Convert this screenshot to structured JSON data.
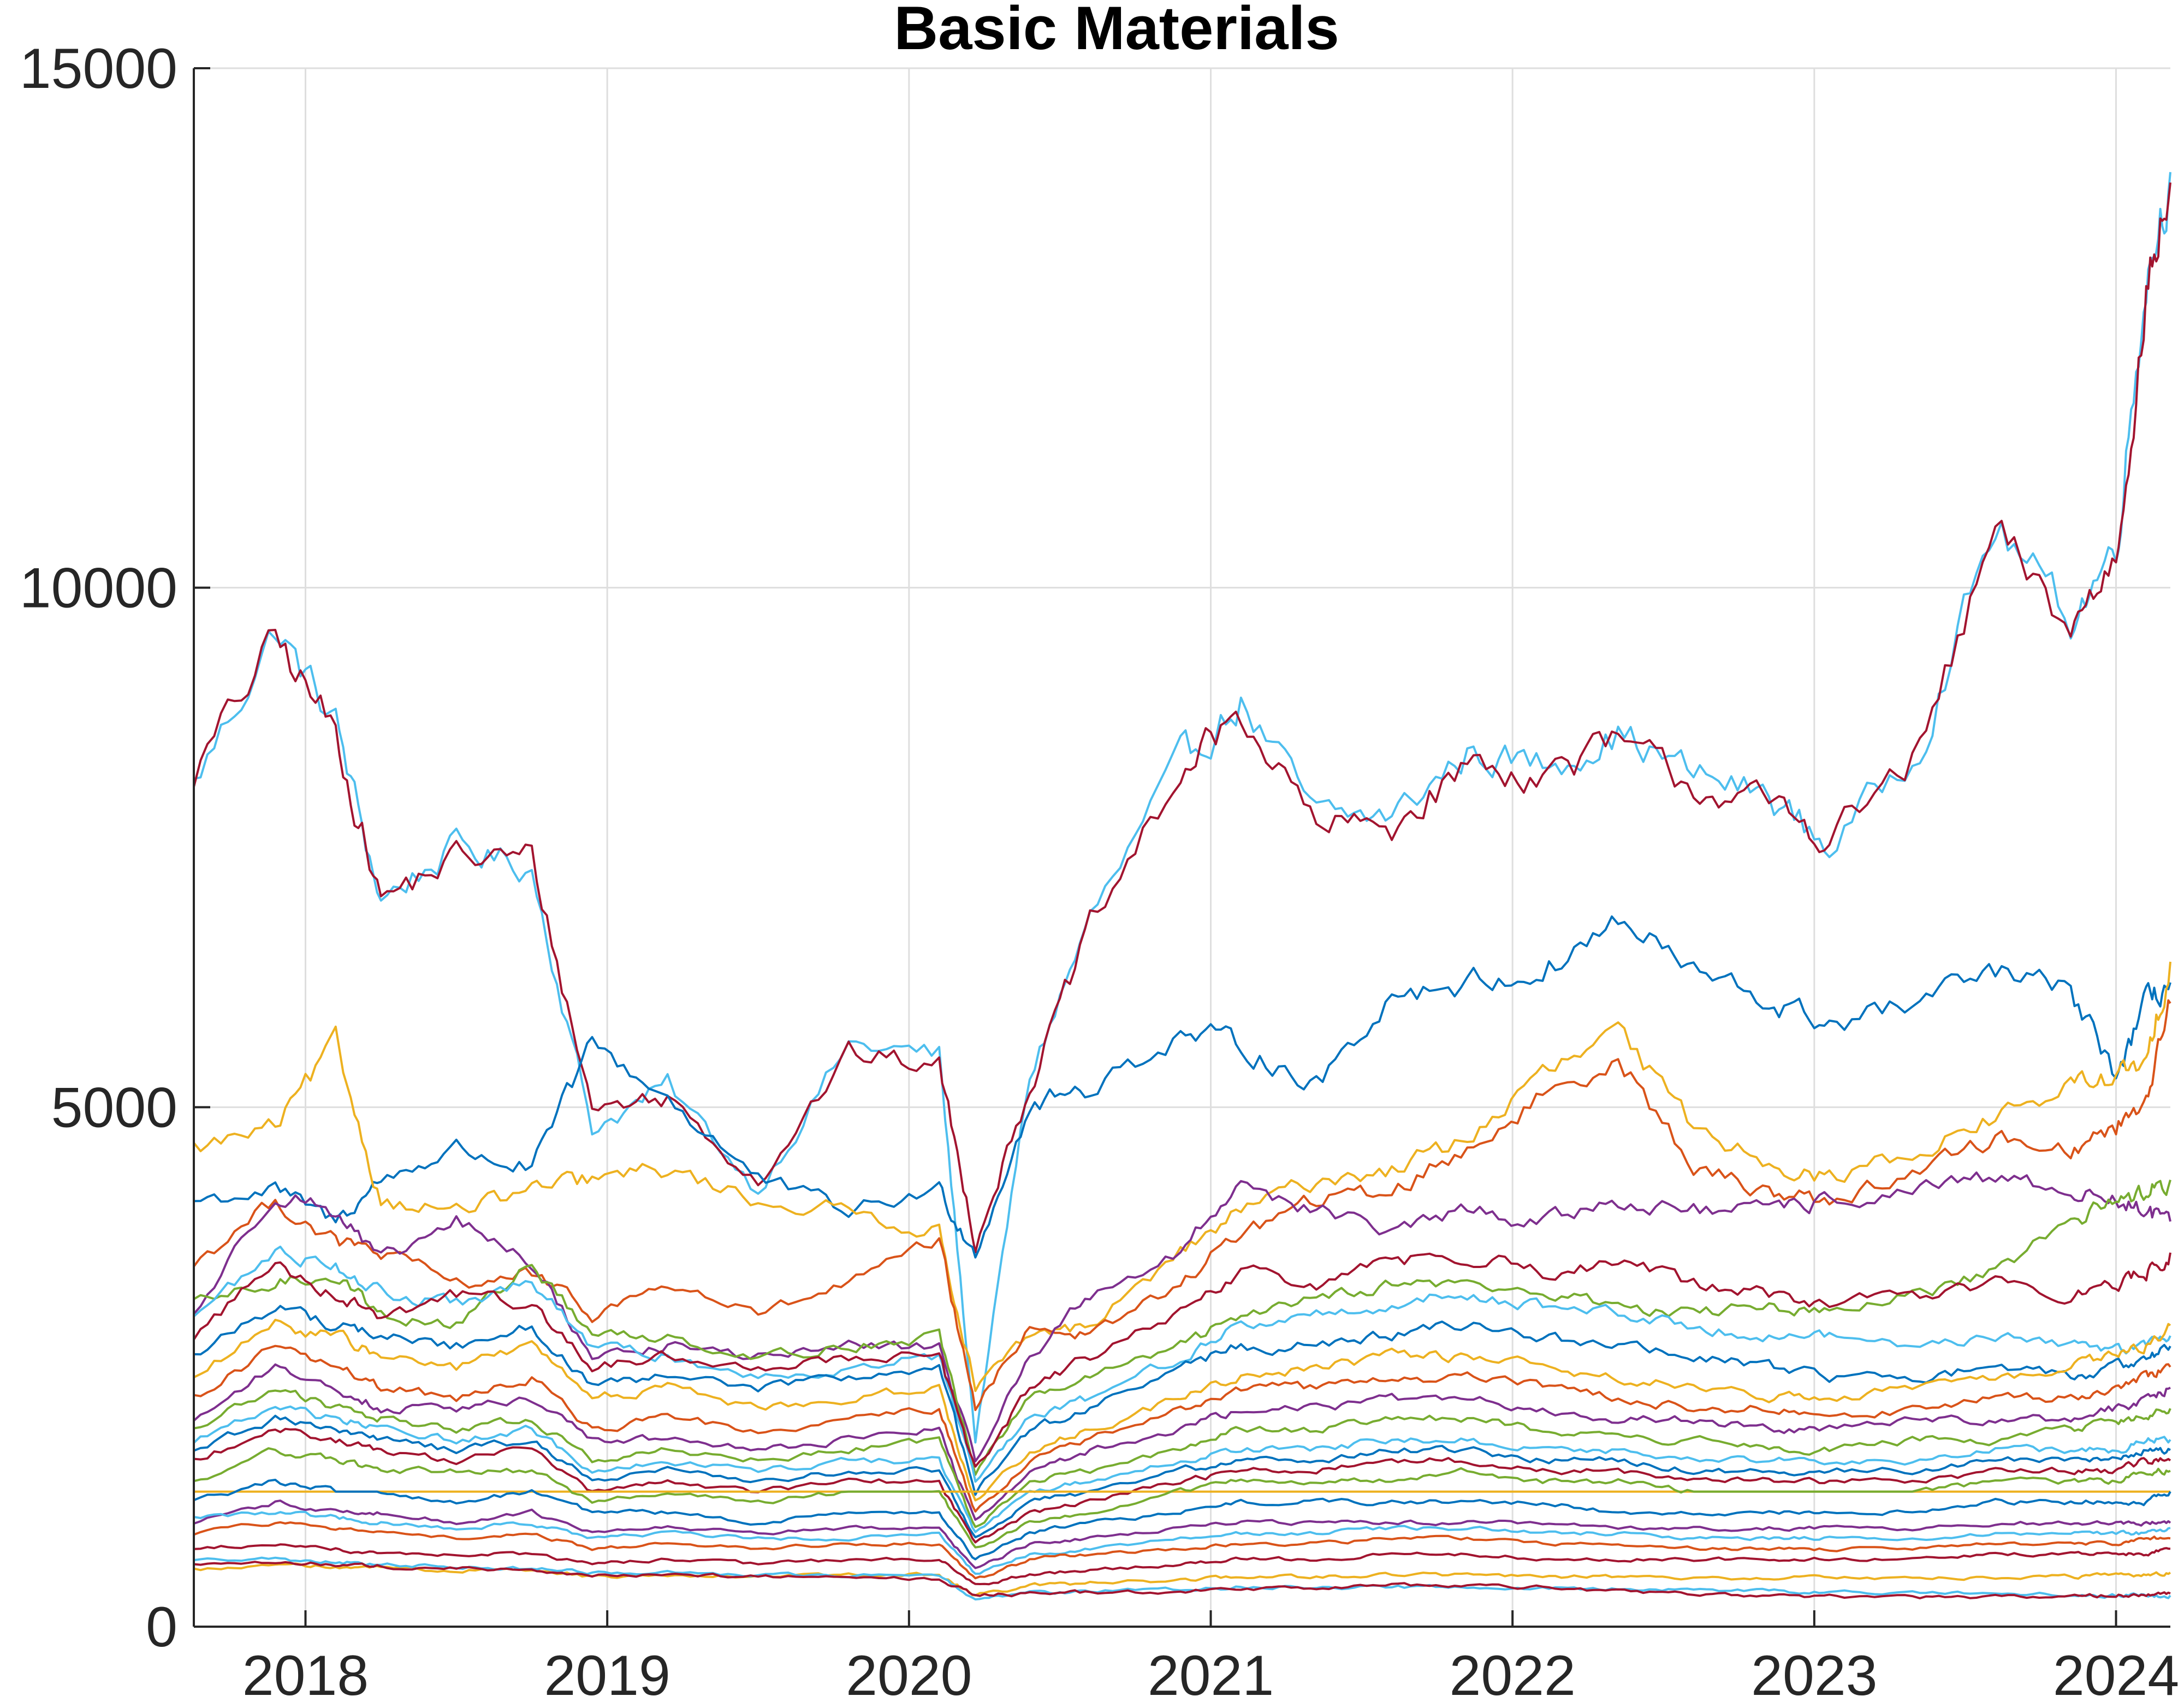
{
  "chart_data": {
    "type": "line",
    "title": "Basic Materials",
    "xlabel": "",
    "ylabel": "",
    "xlim": [
      2017.63,
      2024.18
    ],
    "ylim": [
      0,
      15000
    ],
    "x_ticks": [
      "2018",
      "2019",
      "2020",
      "2021",
      "2022",
      "2023",
      "2024"
    ],
    "y_ticks": [
      "0",
      "5000",
      "10000",
      "15000"
    ],
    "grid": true,
    "legend": "none",
    "colors": [
      "#4dbeee",
      "#7e2f8e",
      "#0072bd",
      "#d95319",
      "#edb120",
      "#77ac30",
      "#a2142f"
    ],
    "series_note_x": [
      2017.63,
      2017.9,
      2018.1,
      2018.25,
      2018.5,
      2018.75,
      2018.95,
      2019.2,
      2019.5,
      2019.8,
      2020.1,
      2020.22,
      2020.4,
      2020.6,
      2020.9,
      2021.1,
      2021.35,
      2021.6,
      2021.85,
      2022.1,
      2022.35,
      2022.6,
      2022.85,
      2023.05,
      2023.35,
      2023.6,
      2023.85,
      2024.0,
      2024.1,
      2024.18
    ],
    "series": [
      {
        "color": "#4dbeee",
        "values": [
          8100,
          9600,
          8700,
          7000,
          7500,
          7300,
          4800,
          5200,
          4200,
          5600,
          5500,
          1800,
          5300,
          6800,
          8300,
          8900,
          7800,
          7800,
          8400,
          8300,
          8600,
          8200,
          8000,
          7500,
          8500,
          10600,
          9700,
          10400,
          13000,
          14000
        ]
      },
      {
        "color": "#a2142f",
        "values": [
          8200,
          9500,
          8600,
          7000,
          7400,
          7400,
          5000,
          5100,
          4300,
          5500,
          5400,
          3700,
          5200,
          6700,
          8200,
          8800,
          7700,
          7700,
          8300,
          8200,
          8500,
          8100,
          7900,
          7600,
          8400,
          10500,
          9600,
          10300,
          12800,
          13900
        ]
      },
      {
        "color": "#0072bd",
        "values": [
          4100,
          4200,
          3900,
          4300,
          4600,
          4400,
          5600,
          5100,
          4300,
          4000,
          4200,
          3600,
          5000,
          5200,
          5700,
          5600,
          5200,
          6100,
          6200,
          6300,
          6800,
          6300,
          6000,
          5800,
          6000,
          6300,
          6100,
          5300,
          6000,
          6200
        ]
      },
      {
        "color": "#edb120",
        "values": [
          4600,
          4800,
          5600,
          4100,
          4000,
          4200,
          4300,
          4400,
          4100,
          4000,
          3800,
          2300,
          2800,
          2900,
          3600,
          4000,
          4300,
          4400,
          4700,
          5300,
          5700,
          4800,
          4500,
          4300,
          4600,
          4900,
          5200,
          5300,
          5400,
          6400
        ]
      },
      {
        "color": "#d95319",
        "values": [
          3500,
          4100,
          3700,
          3600,
          3300,
          3400,
          3000,
          3300,
          3000,
          3300,
          3700,
          2100,
          2900,
          2800,
          3300,
          3800,
          4100,
          4200,
          4600,
          5100,
          5500,
          4400,
          4200,
          4100,
          4400,
          4700,
          4600,
          4800,
          5100,
          6000
        ]
      },
      {
        "color": "#7e2f8e",
        "values": [
          3000,
          4200,
          4000,
          3500,
          3900,
          3500,
          2600,
          2700,
          2600,
          2700,
          2700,
          1600,
          2600,
          3200,
          3600,
          4300,
          4000,
          3800,
          4000,
          3900,
          4100,
          4000,
          4000,
          4100,
          4200,
          4300,
          4200,
          4100,
          4000,
          3900
        ]
      },
      {
        "color": "#77ac30",
        "values": [
          3100,
          3300,
          3400,
          3000,
          2900,
          3500,
          2800,
          2800,
          2600,
          2700,
          2800,
          1500,
          2200,
          2400,
          2700,
          3000,
          3200,
          3300,
          3300,
          3200,
          3100,
          3000,
          3100,
          3000,
          3200,
          3400,
          3900,
          4100,
          4200,
          4300
        ]
      },
      {
        "color": "#4dbeee",
        "values": [
          3000,
          3600,
          3500,
          3200,
          3100,
          3300,
          2700,
          2600,
          2400,
          2500,
          2600,
          1400,
          2000,
          2200,
          2600,
          2900,
          3000,
          3100,
          3200,
          3100,
          3000,
          2900,
          2800,
          2800,
          2700,
          2800,
          2700,
          2700,
          2700,
          2800
        ]
      },
      {
        "color": "#0072bd",
        "values": [
          2600,
          3100,
          2900,
          2800,
          2700,
          2900,
          2300,
          2400,
          2300,
          2400,
          2500,
          1300,
          1900,
          2100,
          2500,
          2700,
          2700,
          2800,
          2900,
          2800,
          2700,
          2600,
          2500,
          2400,
          2400,
          2500,
          2400,
          2500,
          2600,
          2700
        ]
      },
      {
        "color": "#a2142f",
        "values": [
          2800,
          3500,
          3200,
          3000,
          3200,
          3100,
          2500,
          2600,
          2500,
          2600,
          2600,
          1500,
          2300,
          2600,
          3000,
          3400,
          3300,
          3500,
          3600,
          3400,
          3500,
          3300,
          3200,
          3100,
          3200,
          3300,
          3200,
          3300,
          3400,
          3600
        ]
      },
      {
        "color": "#edb120",
        "values": [
          2400,
          2900,
          2800,
          2600,
          2500,
          2700,
          2200,
          2300,
          2100,
          2200,
          2300,
          1200,
          1700,
          1900,
          2200,
          2400,
          2500,
          2600,
          2600,
          2500,
          2400,
          2300,
          2200,
          2200,
          2300,
          2400,
          2500,
          2600,
          2700,
          2900
        ]
      },
      {
        "color": "#d95319",
        "values": [
          2200,
          2700,
          2500,
          2300,
          2200,
          2400,
          1900,
          2000,
          1900,
          2000,
          2100,
          1100,
          1600,
          1800,
          2100,
          2300,
          2300,
          2400,
          2400,
          2300,
          2200,
          2100,
          2100,
          2000,
          2100,
          2200,
          2200,
          2300,
          2400,
          2500
        ]
      },
      {
        "color": "#7e2f8e",
        "values": [
          2000,
          2500,
          2300,
          2100,
          2100,
          2200,
          1800,
          1800,
          1700,
          1800,
          1900,
          1000,
          1500,
          1700,
          1900,
          2100,
          2100,
          2200,
          2200,
          2100,
          2000,
          2000,
          1900,
          1900,
          2000,
          2000,
          2000,
          2100,
          2200,
          2300
        ]
      },
      {
        "color": "#77ac30",
        "values": [
          1900,
          2300,
          2100,
          2000,
          1900,
          2000,
          1600,
          1700,
          1600,
          1700,
          1800,
          950,
          1400,
          1500,
          1700,
          1900,
          1900,
          2000,
          2000,
          1900,
          1800,
          1800,
          1700,
          1700,
          1800,
          1800,
          1900,
          2000,
          2000,
          2100
        ]
      },
      {
        "color": "#4dbeee",
        "values": [
          1800,
          2100,
          2000,
          1900,
          1800,
          1900,
          1500,
          1600,
          1500,
          1600,
          1600,
          900,
          1300,
          1400,
          1600,
          1700,
          1700,
          1800,
          1800,
          1700,
          1700,
          1600,
          1600,
          1600,
          1600,
          1700,
          1700,
          1700,
          1800,
          1800
        ]
      },
      {
        "color": "#0072bd",
        "values": [
          1700,
          2000,
          1900,
          1800,
          1700,
          1800,
          1400,
          1500,
          1400,
          1500,
          1500,
          850,
          1200,
          1300,
          1500,
          1600,
          1600,
          1700,
          1700,
          1600,
          1600,
          1500,
          1500,
          1500,
          1500,
          1600,
          1600,
          1600,
          1700,
          1700
        ]
      },
      {
        "color": "#a2142f",
        "values": [
          1600,
          1900,
          1800,
          1700,
          1600,
          1700,
          1300,
          1400,
          1300,
          1400,
          1400,
          800,
          1100,
          1200,
          1400,
          1500,
          1500,
          1600,
          1600,
          1500,
          1500,
          1400,
          1400,
          1400,
          1400,
          1500,
          1500,
          1500,
          1600,
          1600
        ]
      },
      {
        "color": "#edb120",
        "values": [
          1300,
          1300,
          1300,
          1300,
          1300,
          1300,
          1300,
          1300,
          1300,
          1300,
          1300,
          1300,
          1300,
          1300,
          1300,
          1300,
          1300,
          1300,
          1300,
          1300,
          1300,
          1300,
          1300,
          1300,
          1300,
          1300,
          1300,
          1300,
          1300,
          1300
        ]
      },
      {
        "color": "#77ac30",
        "values": [
          1400,
          1700,
          1600,
          1500,
          1500,
          1500,
          1200,
          1300,
          1200,
          1300,
          1300,
          750,
          1000,
          1100,
          1300,
          1400,
          1400,
          1400,
          1500,
          1400,
          1400,
          1300,
          1300,
          1300,
          1300,
          1400,
          1400,
          1400,
          1500,
          1500
        ]
      },
      {
        "color": "#0072bd",
        "values": [
          1200,
          1400,
          1300,
          1300,
          1200,
          1300,
          1100,
          1100,
          1000,
          1100,
          1100,
          650,
          900,
          1000,
          1100,
          1200,
          1200,
          1200,
          1200,
          1200,
          1100,
          1100,
          1100,
          1100,
          1100,
          1200,
          1200,
          1200,
          1200,
          1300
        ]
      },
      {
        "color": "#7e2f8e",
        "values": [
          1000,
          1200,
          1100,
          1100,
          1000,
          1100,
          900,
          950,
          900,
          950,
          950,
          550,
          800,
          850,
          950,
          1000,
          1000,
          1000,
          1000,
          1000,
          950,
          950,
          950,
          950,
          950,
          1000,
          1000,
          1000,
          1000,
          1000
        ]
      },
      {
        "color": "#4dbeee",
        "values": [
          1050,
          1100,
          1050,
          1000,
          950,
          1000,
          850,
          900,
          850,
          850,
          900,
          500,
          700,
          750,
          850,
          900,
          900,
          950,
          950,
          900,
          900,
          850,
          850,
          850,
          850,
          900,
          900,
          900,
          900,
          950
        ]
      },
      {
        "color": "#d95319",
        "values": [
          900,
          1000,
          950,
          900,
          850,
          900,
          750,
          800,
          750,
          800,
          800,
          450,
          650,
          700,
          750,
          800,
          800,
          850,
          850,
          800,
          800,
          750,
          750,
          750,
          750,
          800,
          800,
          800,
          850,
          850
        ]
      },
      {
        "color": "#a2142f",
        "values": [
          750,
          800,
          750,
          700,
          700,
          700,
          600,
          650,
          600,
          650,
          650,
          400,
          500,
          550,
          600,
          650,
          650,
          700,
          700,
          650,
          650,
          650,
          650,
          650,
          650,
          700,
          700,
          700,
          700,
          750
        ]
      },
      {
        "color": "#edb120",
        "values": [
          550,
          600,
          580,
          560,
          540,
          550,
          480,
          500,
          480,
          500,
          500,
          300,
          400,
          420,
          450,
          480,
          480,
          500,
          500,
          480,
          480,
          470,
          470,
          470,
          470,
          480,
          480,
          500,
          500,
          520
        ]
      },
      {
        "color": "#4dbeee",
        "values": [
          650,
          650,
          620,
          600,
          580,
          560,
          520,
          520,
          500,
          500,
          480,
          250,
          330,
          340,
          360,
          380,
          380,
          380,
          380,
          370,
          360,
          350,
          340,
          330,
          320,
          320,
          310,
          300,
          300,
          300
        ]
      },
      {
        "color": "#a2142f",
        "values": [
          600,
          620,
          600,
          580,
          560,
          540,
          500,
          500,
          480,
          480,
          460,
          300,
          320,
          330,
          340,
          350,
          380,
          400,
          400,
          380,
          340,
          320,
          300,
          290,
          280,
          290,
          300,
          300,
          310,
          320
        ]
      }
    ]
  }
}
